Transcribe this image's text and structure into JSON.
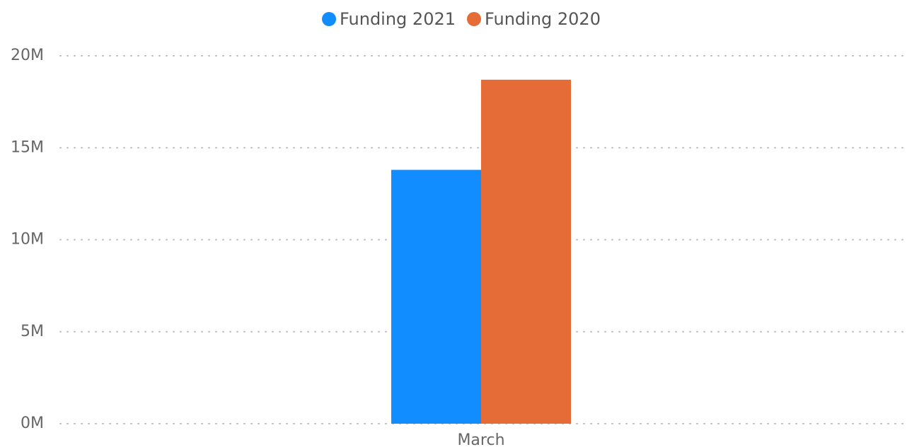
{
  "chart_data": {
    "type": "bar",
    "categories": [
      "March"
    ],
    "series": [
      {
        "name": "Funding 2021",
        "color": "#118dff",
        "values": [
          13800000
        ]
      },
      {
        "name": "Funding 2020",
        "color": "#e66c37",
        "values": [
          18700000
        ]
      }
    ],
    "ylim": [
      0,
      20000000
    ],
    "yticks": [
      {
        "value": 0,
        "label": "0M"
      },
      {
        "value": 5000000,
        "label": "5M"
      },
      {
        "value": 10000000,
        "label": "10M"
      },
      {
        "value": 15000000,
        "label": "15M"
      },
      {
        "value": 20000000,
        "label": "20M"
      }
    ],
    "grid": true,
    "legend": "top"
  }
}
